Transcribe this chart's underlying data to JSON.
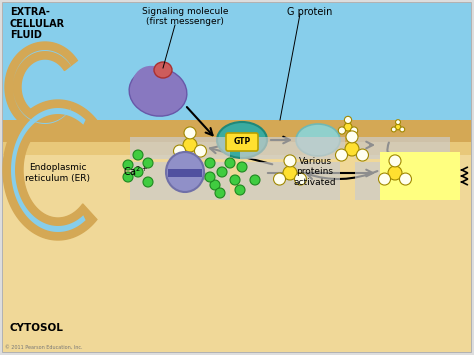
{
  "extracellular_color": "#87CEEB",
  "membrane_color": "#D4A855",
  "membrane_inner_color": "#E8C87A",
  "cytosol_color": "#F0D898",
  "er_fluid_color": "#87CEEB",
  "text_extracellular": "EXTRA-\nCELLULAR\nFLUID",
  "text_cytosol": "CYTOSOL",
  "text_signaling": "Signaling molecule\n(first messenger)",
  "text_gprotein": "G protein",
  "text_er": "Endoplasmic\nreticulum (ER)",
  "text_various": "Various\nproteins\nactivated",
  "text_copyright": "© 2011 Pearson Education, Inc.",
  "signaling_mol_color": "#8878C0",
  "signaling_top_color": "#CD5C5C",
  "gprotein_active_color": "#3AABA0",
  "gprotein_inactive_color": "#90D0CC",
  "gtp_color": "#FFE030",
  "enzyme_hex_color": "#FFE030",
  "enzyme_circle_color": "#FFFFF0",
  "er_sphere_color": "#9090C8",
  "er_sphere_dark": "#7070A8",
  "ca2_color": "#40CC40",
  "yellow_highlight": "#FFFF80",
  "gray_blur_color": "#CCCCCC",
  "border_color": "#AAAAAA"
}
